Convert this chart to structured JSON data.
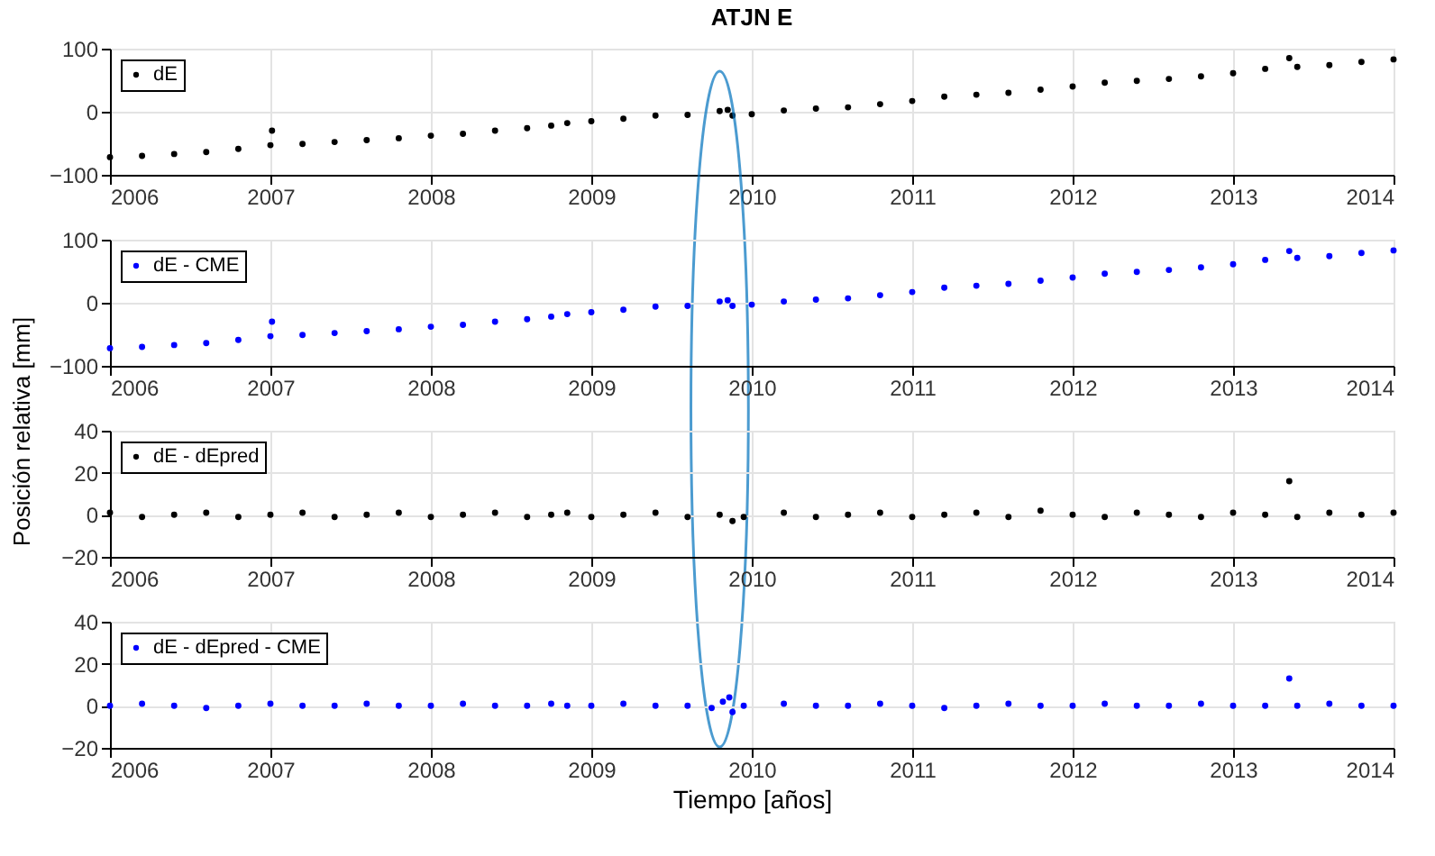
{
  "chart_data": [
    {
      "type": "scatter",
      "title": "ATJN E",
      "x": [
        2006.0,
        2006.2,
        2006.4,
        2006.6,
        2006.8,
        2007.0,
        2007.01,
        2007.2,
        2007.4,
        2007.6,
        2007.8,
        2008.0,
        2008.2,
        2008.4,
        2008.6,
        2008.75,
        2008.85,
        2009.0,
        2009.2,
        2009.4,
        2009.6,
        2009.8,
        2009.85,
        2009.88,
        2010.0,
        2010.2,
        2010.4,
        2010.6,
        2010.8,
        2011.0,
        2011.2,
        2011.4,
        2011.6,
        2011.8,
        2012.0,
        2012.2,
        2012.4,
        2012.6,
        2012.8,
        2013.0,
        2013.2,
        2013.35,
        2013.4,
        2013.6,
        2013.8,
        2014.0
      ],
      "series": [
        {
          "name": "dE",
          "color": "#000000",
          "values": [
            -72,
            -70,
            -67,
            -64,
            -59,
            -53,
            -30,
            -51,
            -48,
            -45,
            -42,
            -38,
            -35,
            -30,
            -26,
            -22,
            -18,
            -15,
            -11,
            -6,
            -5,
            1,
            3,
            -6,
            -4,
            2,
            5,
            7,
            12,
            17,
            24,
            27,
            30,
            35,
            40,
            46,
            49,
            52,
            56,
            61,
            68,
            85,
            71,
            74,
            79,
            83
          ]
        }
      ],
      "xlim": [
        2006,
        2014
      ],
      "xticks": [
        2006,
        2007,
        2008,
        2009,
        2010,
        2011,
        2012,
        2013,
        2014
      ],
      "ylim": [
        -100,
        100
      ],
      "yticks": [
        -100,
        0,
        100
      ],
      "grid": true,
      "legend": "top left",
      "marker": "circle"
    },
    {
      "type": "scatter",
      "ylabel": "Posición relativa [mm]",
      "x": [
        2006.0,
        2006.2,
        2006.4,
        2006.6,
        2006.8,
        2007.0,
        2007.01,
        2007.2,
        2007.4,
        2007.6,
        2007.8,
        2008.0,
        2008.2,
        2008.4,
        2008.6,
        2008.75,
        2008.85,
        2009.0,
        2009.2,
        2009.4,
        2009.6,
        2009.8,
        2009.85,
        2009.88,
        2010.0,
        2010.2,
        2010.4,
        2010.6,
        2010.8,
        2011.0,
        2011.2,
        2011.4,
        2011.6,
        2011.8,
        2012.0,
        2012.2,
        2012.4,
        2012.6,
        2012.8,
        2013.0,
        2013.2,
        2013.35,
        2013.4,
        2013.6,
        2013.8,
        2014.0
      ],
      "series": [
        {
          "name": "dE - CME",
          "color": "#0000ff",
          "values": [
            -72,
            -70,
            -67,
            -64,
            -59,
            -53,
            -30,
            -51,
            -48,
            -45,
            -42,
            -38,
            -35,
            -30,
            -26,
            -22,
            -18,
            -15,
            -11,
            -6,
            -5,
            2,
            4,
            -5,
            -3,
            2,
            5,
            7,
            12,
            17,
            24,
            27,
            30,
            35,
            40,
            46,
            49,
            52,
            56,
            61,
            68,
            82,
            71,
            74,
            79,
            83
          ]
        }
      ],
      "xlim": [
        2006,
        2014
      ],
      "xticks": [
        2006,
        2007,
        2008,
        2009,
        2010,
        2011,
        2012,
        2013,
        2014
      ],
      "ylim": [
        -100,
        100
      ],
      "yticks": [
        -100,
        0,
        100
      ],
      "grid": true,
      "legend": "top left",
      "marker": "circle"
    },
    {
      "type": "scatter",
      "x": [
        2006.0,
        2006.2,
        2006.4,
        2006.6,
        2006.8,
        2007.0,
        2007.2,
        2007.4,
        2007.6,
        2007.8,
        2008.0,
        2008.2,
        2008.4,
        2008.6,
        2008.75,
        2008.85,
        2009.0,
        2009.2,
        2009.4,
        2009.6,
        2009.8,
        2009.88,
        2009.95,
        2010.2,
        2010.4,
        2010.6,
        2010.8,
        2011.0,
        2011.2,
        2011.4,
        2011.6,
        2011.8,
        2012.0,
        2012.2,
        2012.4,
        2012.6,
        2012.8,
        2013.0,
        2013.2,
        2013.35,
        2013.4,
        2013.6,
        2013.8,
        2014.0
      ],
      "series": [
        {
          "name": "dE - dEpred",
          "color": "#000000",
          "values": [
            1,
            -1,
            0,
            1,
            -1,
            0,
            1,
            -1,
            0,
            1,
            -1,
            0,
            1,
            -1,
            0,
            1,
            -1,
            0,
            1,
            -1,
            0,
            -3,
            -1,
            1,
            -1,
            0,
            1,
            -1,
            0,
            1,
            -1,
            2,
            0,
            -1,
            1,
            0,
            -1,
            1,
            0,
            16,
            -1,
            1,
            0,
            1
          ]
        }
      ],
      "xlim": [
        2006,
        2014
      ],
      "xticks": [
        2006,
        2007,
        2008,
        2009,
        2010,
        2011,
        2012,
        2013,
        2014
      ],
      "ylim": [
        -20,
        40
      ],
      "yticks": [
        -20,
        0,
        20,
        40
      ],
      "grid": true,
      "legend": "top left",
      "marker": "circle"
    },
    {
      "type": "scatter",
      "xlabel": "Tiempo [años]",
      "x": [
        2006.0,
        2006.2,
        2006.4,
        2006.6,
        2006.8,
        2007.0,
        2007.2,
        2007.4,
        2007.6,
        2007.8,
        2008.0,
        2008.2,
        2008.4,
        2008.6,
        2008.75,
        2008.85,
        2009.0,
        2009.2,
        2009.4,
        2009.6,
        2009.75,
        2009.82,
        2009.86,
        2009.88,
        2009.95,
        2010.2,
        2010.4,
        2010.6,
        2010.8,
        2011.0,
        2011.2,
        2011.4,
        2011.6,
        2011.8,
        2012.0,
        2012.2,
        2012.4,
        2012.6,
        2012.8,
        2013.0,
        2013.2,
        2013.35,
        2013.4,
        2013.6,
        2013.8,
        2014.0
      ],
      "series": [
        {
          "name": "dE - dEpred - CME",
          "color": "#0000ff",
          "values": [
            0,
            1,
            0,
            -1,
            0,
            1,
            0,
            0,
            1,
            0,
            0,
            1,
            0,
            0,
            1,
            0,
            0,
            1,
            0,
            0,
            -1,
            2,
            4,
            -3,
            0,
            1,
            0,
            0,
            1,
            0,
            -1,
            0,
            1,
            0,
            0,
            1,
            0,
            0,
            1,
            0,
            0,
            13,
            0,
            1,
            0,
            0
          ]
        }
      ],
      "xlim": [
        2006,
        2014
      ],
      "xticks": [
        2006,
        2007,
        2008,
        2009,
        2010,
        2011,
        2012,
        2013,
        2014
      ],
      "ylim": [
        -20,
        40
      ],
      "yticks": [
        -20,
        0,
        20,
        40
      ],
      "grid": true,
      "legend": "top left",
      "marker": "circle"
    }
  ]
}
